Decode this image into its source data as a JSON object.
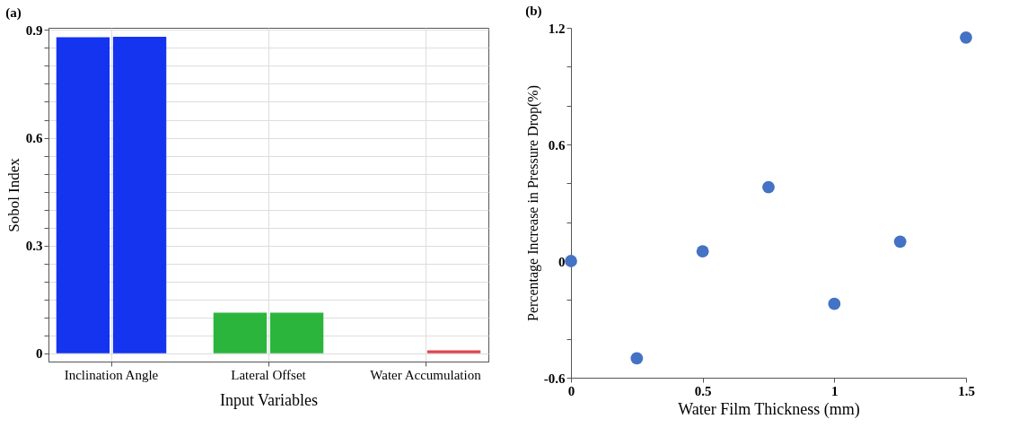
{
  "chart_data": [
    {
      "type": "bar",
      "title": "(a)",
      "xlabel": "Input Variables",
      "ylabel": "Sobol Index",
      "categories": [
        "Inclination Angle",
        "Lateral Offset",
        "Water Accumulation"
      ],
      "series": [
        {
          "colors": [
            "#1434f0",
            "#2bb53c",
            "#e0454a"
          ],
          "values": [
            0.88,
            0.113,
            0
          ]
        },
        {
          "colors": [
            "#1434f0",
            "#2bb53c",
            "#e0454a"
          ],
          "values": [
            0.881,
            0.113,
            0.008
          ]
        }
      ],
      "ylim": [
        -0.023,
        0.906
      ],
      "yticks": [
        0,
        {
          "value": 0.05,
          "label": null
        },
        {
          "value": 0.1,
          "label": null
        },
        {
          "value": 0.15,
          "label": null
        },
        {
          "value": 0.2,
          "label": null
        },
        {
          "value": 0.25,
          "label": null
        },
        0.3,
        {
          "value": 0.35,
          "label": null
        },
        {
          "value": 0.4,
          "label": null
        },
        {
          "value": 0.45,
          "label": null
        },
        {
          "value": 0.5,
          "label": null
        },
        {
          "value": 0.55,
          "label": null
        },
        0.6,
        {
          "value": 0.65,
          "label": null
        },
        {
          "value": 0.7,
          "label": null
        },
        {
          "value": 0.75,
          "label": null
        },
        {
          "value": 0.8,
          "label": null
        },
        {
          "value": 0.85,
          "label": null
        },
        0.9
      ],
      "grid": true
    },
    {
      "type": "scatter",
      "title": "(b)",
      "xlabel": "Water Film Thickness (mm)",
      "ylabel": "Percentage Increase in Pressure Drop(%)",
      "x": [
        0,
        0.25,
        0.5,
        0.75,
        1,
        1.25,
        1.5
      ],
      "series": [
        {
          "color": "#4472c4",
          "values": [
            0.0,
            -0.5,
            0.05,
            0.38,
            -0.22,
            0.1,
            1.15
          ]
        }
      ],
      "xlim": [
        0,
        1.5
      ],
      "xticks": [
        0,
        0.5,
        1,
        1.5
      ],
      "ylim": [
        -0.6,
        1.2
      ],
      "yticks": [
        -0.6,
        {
          "value": -0.4,
          "label": null
        },
        {
          "value": -0.2,
          "label": null
        },
        0,
        {
          "value": 0.2,
          "label": null
        },
        {
          "value": 0.4,
          "label": null
        },
        0.6,
        {
          "value": 0.8,
          "label": null
        },
        {
          "value": 1.0,
          "label": null
        },
        1.2
      ],
      "grid": false,
      "marker": "circle"
    }
  ]
}
